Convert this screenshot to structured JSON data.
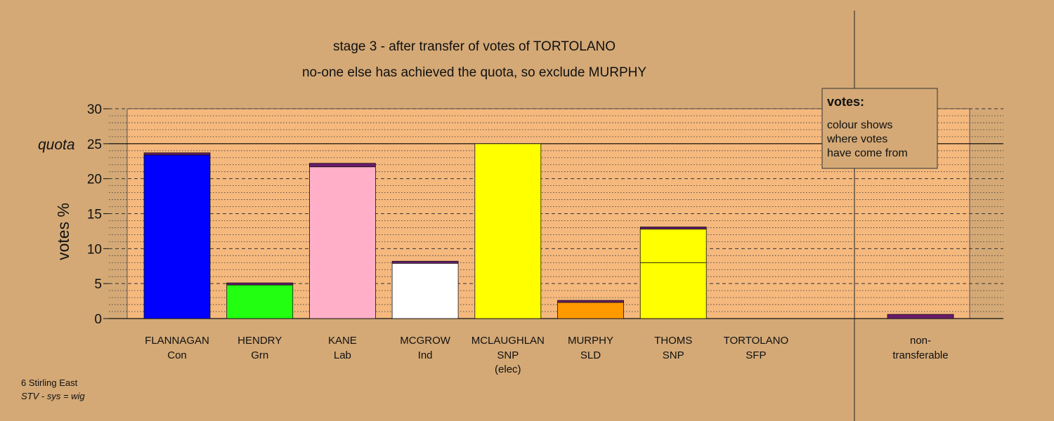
{
  "chart_data": {
    "type": "bar",
    "title": "stage 3 - after transfer of votes of TORTOLANO",
    "subtitle": "no-one else has achieved the quota, so exclude MURPHY",
    "ylabel": "votes %",
    "ylim": [
      0,
      30
    ],
    "yticks": [
      "0",
      "5",
      "10",
      "15",
      "20",
      "25",
      "30"
    ],
    "quota": 25,
    "quota_label": "quota",
    "grid": "dashed every 5, dotted every 1",
    "candidates": [
      {
        "name": "FLANNAGAN",
        "party": "Con",
        "note": "",
        "total": 23.7,
        "segments": [
          {
            "from": "Con",
            "value": 23.4,
            "color": "#0000ff"
          },
          {
            "from": "transfer",
            "value": 0.3,
            "color": "#6a1b6a"
          }
        ]
      },
      {
        "name": "HENDRY",
        "party": "Grn",
        "note": "",
        "total": 5.1,
        "segments": [
          {
            "from": "Grn",
            "value": 4.8,
            "color": "#22ff11"
          },
          {
            "from": "transfer",
            "value": 0.3,
            "color": "#6a1b6a"
          }
        ]
      },
      {
        "name": "KANE",
        "party": "Lab",
        "note": "",
        "total": 22.2,
        "segments": [
          {
            "from": "Lab",
            "value": 21.7,
            "color": "#ffb0c8"
          },
          {
            "from": "transfer",
            "value": 0.5,
            "color": "#6a1b6a"
          }
        ]
      },
      {
        "name": "MCGROW",
        "party": "Ind",
        "note": "",
        "total": 8.2,
        "segments": [
          {
            "from": "Ind",
            "value": 7.9,
            "color": "#ffffff"
          },
          {
            "from": "transfer",
            "value": 0.3,
            "color": "#6a1b6a"
          }
        ]
      },
      {
        "name": "MCLAUGHLAN",
        "party": "SNP",
        "note": "(elec)",
        "total": 25.0,
        "segments": [
          {
            "from": "SNP",
            "value": 25.0,
            "color": "#ffff00"
          }
        ]
      },
      {
        "name": "MURPHY",
        "party": "SLD",
        "note": "",
        "total": 2.6,
        "segments": [
          {
            "from": "SLD",
            "value": 2.3,
            "color": "#ff9900"
          },
          {
            "from": "transfer",
            "value": 0.3,
            "color": "#6a1b6a"
          }
        ]
      },
      {
        "name": "THOMS",
        "party": "SNP",
        "note": "",
        "total": 13.1,
        "segments": [
          {
            "from": "SNP",
            "value": 8.0,
            "color": "#ffff00"
          },
          {
            "from": "SNP surplus",
            "value": 4.8,
            "color": "#ffff00"
          },
          {
            "from": "transfer",
            "value": 0.3,
            "color": "#6a1b6a"
          }
        ]
      },
      {
        "name": "TORTOLANO",
        "party": "SFP",
        "note": "",
        "total": 0,
        "segments": []
      }
    ],
    "nontransferable": {
      "label_line1": "non-",
      "label_line2": "transferable",
      "value": 0.6,
      "color": "#6a1b6a"
    },
    "legend": {
      "title": "votes:",
      "lines": [
        "colour shows",
        "where votes",
        "have come from"
      ],
      "position": "top-right"
    }
  },
  "footer": {
    "line1": "6 Stirling East",
    "line2": "STV - sys = wig"
  },
  "colors": {
    "background": "#d4a976",
    "plot_area": "#f5b97e",
    "quota_line": "#000000"
  }
}
